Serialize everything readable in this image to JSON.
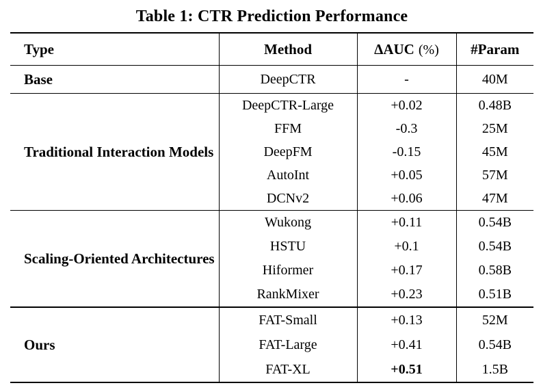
{
  "title": "Table 1: CTR Prediction Performance",
  "header": {
    "type": "Type",
    "method": "Method",
    "dauc_bold": "ΔAUC",
    "dauc_pct": "(%)",
    "param": "#Param"
  },
  "sections": {
    "base": {
      "type": "Base",
      "rows": [
        {
          "method": "DeepCTR",
          "dauc": "-",
          "param": "40M",
          "bold_dauc": false
        }
      ]
    },
    "traditional": {
      "type": "Traditional Interaction Models",
      "rows": [
        {
          "method": "DeepCTR-Large",
          "dauc": "+0.02",
          "param": "0.48B",
          "bold_dauc": false
        },
        {
          "method": "FFM",
          "dauc": "-0.3",
          "param": "25M",
          "bold_dauc": false
        },
        {
          "method": "DeepFM",
          "dauc": "-0.15",
          "param": "45M",
          "bold_dauc": false
        },
        {
          "method": "AutoInt",
          "dauc": "+0.05",
          "param": "57M",
          "bold_dauc": false
        },
        {
          "method": "DCNv2",
          "dauc": "+0.06",
          "param": "47M",
          "bold_dauc": false
        }
      ]
    },
    "scaling": {
      "type": "Scaling-Oriented Architectures",
      "rows": [
        {
          "method": "Wukong",
          "dauc": "+0.11",
          "param": "0.54B",
          "bold_dauc": false
        },
        {
          "method": "HSTU",
          "dauc": "+0.1",
          "param": "0.54B",
          "bold_dauc": false
        },
        {
          "method": "Hiformer",
          "dauc": "+0.17",
          "param": "0.58B",
          "bold_dauc": false
        },
        {
          "method": "RankMixer",
          "dauc": "+0.23",
          "param": "0.51B",
          "bold_dauc": false
        }
      ]
    },
    "ours": {
      "type": "Ours",
      "rows": [
        {
          "method": "FAT-Small",
          "dauc": "+0.13",
          "param": "52M",
          "bold_dauc": false
        },
        {
          "method": "FAT-Large",
          "dauc": "+0.41",
          "param": "0.54B",
          "bold_dauc": false
        },
        {
          "method": "FAT-XL",
          "dauc": "+0.51",
          "param": "1.5B",
          "bold_dauc": true
        }
      ]
    }
  }
}
